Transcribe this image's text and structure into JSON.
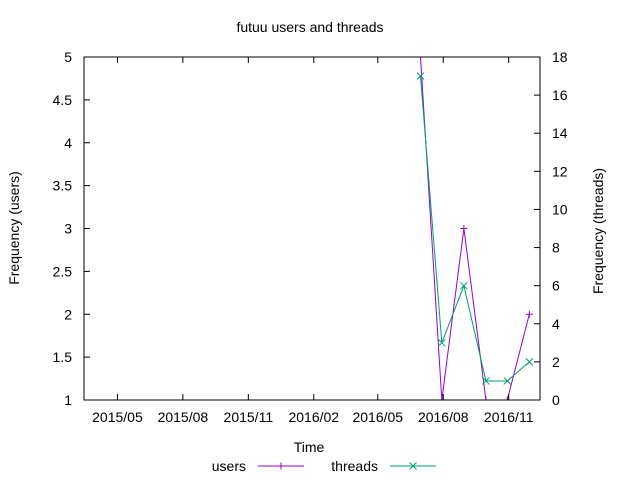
{
  "chart_data": {
    "type": "line",
    "title": "futuu users and threads",
    "xlabel": "Time",
    "ylabel_left": "Frequency (users)",
    "ylabel_right": "Frequency (threads)",
    "x_ticks": [
      "2015/05",
      "2015/08",
      "2015/11",
      "2016/02",
      "2016/05",
      "2016/08",
      "2016/11"
    ],
    "x_tick_dates": [
      "2015-05-01",
      "2015-08-01",
      "2015-11-01",
      "2016-02-01",
      "2016-05-01",
      "2016-08-01",
      "2016-11-01"
    ],
    "xlim": [
      "2015-03-15",
      "2016-12-15"
    ],
    "ylim_left": [
      1,
      5
    ],
    "yticks_left": [
      "1",
      "1.5",
      "2",
      "2.5",
      "3",
      "3.5",
      "4",
      "4.5",
      "5"
    ],
    "ylim_right": [
      0,
      18
    ],
    "yticks_right": [
      "0",
      "2",
      "4",
      "6",
      "8",
      "10",
      "12",
      "14",
      "16",
      "18"
    ],
    "legend_position": "bottom",
    "grid": false,
    "series": [
      {
        "name": "users",
        "axis": "left",
        "color": "#9400d3",
        "marker": "plus",
        "x": [
          "2016-06-30",
          "2016-07-30",
          "2016-08-30",
          "2016-09-30",
          "2016-10-30",
          "2016-11-30"
        ],
        "y": [
          5,
          1,
          3,
          1,
          1,
          2
        ]
      },
      {
        "name": "threads",
        "axis": "right",
        "color": "#009e73",
        "marker": "cross",
        "x": [
          "2016-06-30",
          "2016-07-30",
          "2016-08-30",
          "2016-09-30",
          "2016-10-30",
          "2016-11-30"
        ],
        "y": [
          17,
          3,
          6,
          1,
          1,
          2
        ]
      }
    ]
  }
}
